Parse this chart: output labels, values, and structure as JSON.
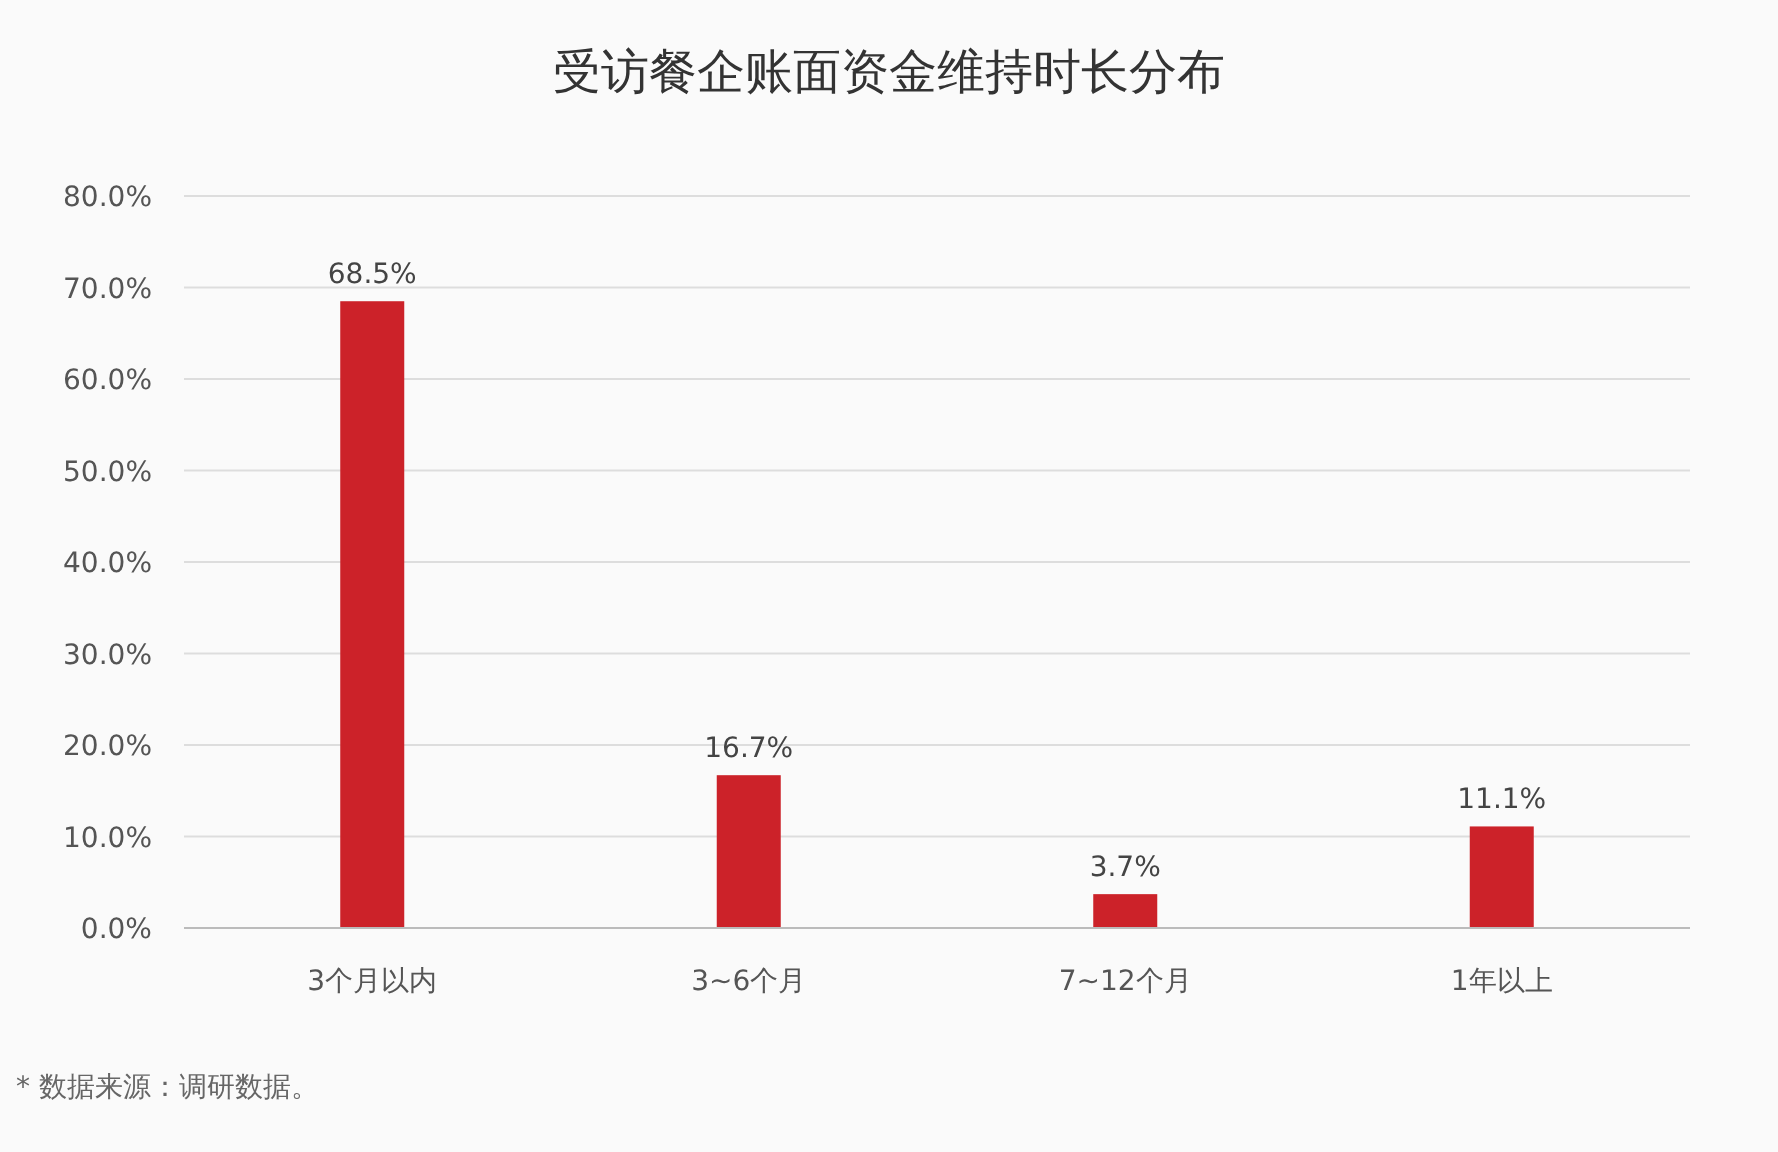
{
  "chart_data": {
    "type": "bar",
    "title": "受访餐企账面资金维持时长分布",
    "categories": [
      "3个月以内",
      "3~6个月",
      "7~12个月",
      "1年以上"
    ],
    "values": [
      68.5,
      16.7,
      3.7,
      11.1
    ],
    "value_labels": [
      "68.5%",
      "16.7%",
      "3.7%",
      "11.1%"
    ],
    "color": "#cc2229",
    "ylim": [
      0,
      80
    ],
    "yticks": [
      {
        "value": 0,
        "label": "0.0%"
      },
      {
        "value": 10,
        "label": "10.0%"
      },
      {
        "value": 20,
        "label": "20.0%"
      },
      {
        "value": 30,
        "label": "30.0%"
      },
      {
        "value": 40,
        "label": "40.0%"
      },
      {
        "value": 50,
        "label": "50.0%"
      },
      {
        "value": 60,
        "label": "60.0%"
      },
      {
        "value": 70,
        "label": "70.0%"
      },
      {
        "value": 80,
        "label": "80.0%"
      }
    ],
    "grid": "y",
    "annotations": [
      "* 数据来源：调研数据。"
    ]
  }
}
